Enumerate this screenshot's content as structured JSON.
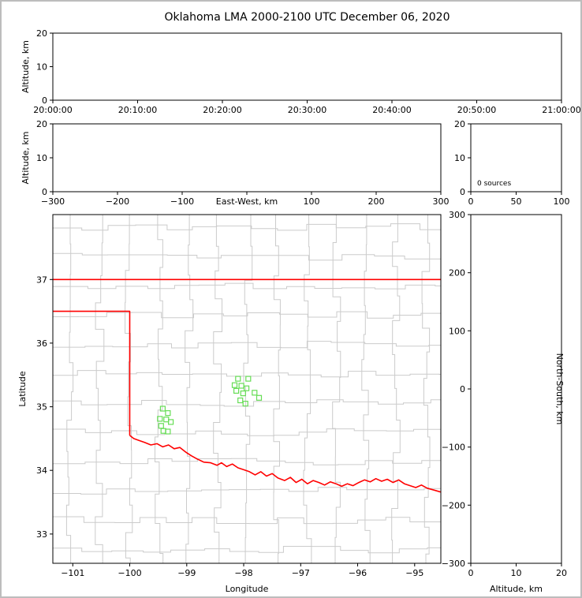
{
  "chart_data": {
    "type": "scatter",
    "title": "Oklahoma LMA 2000-2100 UTC December 06, 2020",
    "colors": {
      "county_lines": "#cbcbcb",
      "state_border": "#ff0000",
      "source_marker": "#66dd55",
      "axis": "#000000",
      "background": "#ffffff",
      "page_border": "#bdbdbd"
    },
    "panels": {
      "time_height": {
        "ylabel": "Altitude, km",
        "ylim": [
          0,
          20
        ],
        "yticks": [
          0,
          10,
          20
        ],
        "xtick_labels": [
          "20:00:00",
          "20:10:00",
          "20:20:00",
          "20:30:00",
          "20:40:00",
          "20:50:00",
          "21:00:00"
        ],
        "points": []
      },
      "ew_height": {
        "xlabel": "East-West, km",
        "ylabel": "Altitude, km",
        "xlim": [
          -300,
          300
        ],
        "xticks": [
          -300,
          -200,
          -100,
          0,
          100,
          200,
          300
        ],
        "ylim": [
          0,
          20
        ],
        "yticks": [
          0,
          10,
          20
        ],
        "points": []
      },
      "alt_histogram": {
        "annotation": "0 sources",
        "xlim": [
          0,
          100
        ],
        "xticks": [
          0,
          50,
          100
        ],
        "ylim": [
          0,
          20
        ],
        "yticks": [
          0,
          10,
          20
        ]
      },
      "map": {
        "xlabel": "Longitude",
        "ylabel": "Latitude",
        "xlim": [
          -101.35,
          -94.54
        ],
        "ylim": [
          32.54,
          38.02
        ],
        "xticks": [
          -101,
          -100,
          -99,
          -98,
          -97,
          -96,
          -95
        ],
        "yticks": [
          33,
          34,
          35,
          36,
          37
        ],
        "sources": [
          [
            -99.42,
            34.97
          ],
          [
            -99.33,
            34.9
          ],
          [
            -99.47,
            34.81
          ],
          [
            -99.36,
            34.8
          ],
          [
            -99.28,
            34.76
          ],
          [
            -99.45,
            34.7
          ],
          [
            -99.41,
            34.62
          ],
          [
            -99.33,
            34.61
          ],
          [
            -98.1,
            35.44
          ],
          [
            -97.92,
            35.44
          ],
          [
            -98.16,
            35.34
          ],
          [
            -98.04,
            35.33
          ],
          [
            -97.95,
            35.29
          ],
          [
            -98.13,
            35.25
          ],
          [
            -98.01,
            35.21
          ],
          [
            -97.81,
            35.22
          ],
          [
            -97.73,
            35.14
          ],
          [
            -98.06,
            35.1
          ],
          [
            -97.97,
            35.05
          ]
        ],
        "state_border": {
          "kansas_border": [
            [
              -101.35,
              37.0
            ],
            [
              -94.54,
              37.0
            ]
          ],
          "panhandle_border": [
            [
              -101.35,
              36.5
            ],
            [
              -100.0,
              36.5
            ],
            [
              -100.0,
              34.55
            ]
          ],
          "red_river": [
            [
              -100.0,
              34.55
            ],
            [
              -99.93,
              34.5
            ],
            [
              -99.84,
              34.47
            ],
            [
              -99.74,
              34.44
            ],
            [
              -99.63,
              34.4
            ],
            [
              -99.52,
              34.42
            ],
            [
              -99.42,
              34.37
            ],
            [
              -99.32,
              34.4
            ],
            [
              -99.22,
              34.34
            ],
            [
              -99.12,
              34.36
            ],
            [
              -99.02,
              34.29
            ],
            [
              -98.92,
              34.23
            ],
            [
              -98.82,
              34.18
            ],
            [
              -98.7,
              34.13
            ],
            [
              -98.58,
              34.12
            ],
            [
              -98.47,
              34.08
            ],
            [
              -98.39,
              34.12
            ],
            [
              -98.3,
              34.06
            ],
            [
              -98.2,
              34.1
            ],
            [
              -98.1,
              34.04
            ],
            [
              -98.0,
              34.01
            ],
            [
              -97.9,
              33.98
            ],
            [
              -97.8,
              33.93
            ],
            [
              -97.7,
              33.98
            ],
            [
              -97.6,
              33.91
            ],
            [
              -97.5,
              33.95
            ],
            [
              -97.4,
              33.88
            ],
            [
              -97.28,
              33.84
            ],
            [
              -97.18,
              33.89
            ],
            [
              -97.08,
              33.81
            ],
            [
              -96.98,
              33.86
            ],
            [
              -96.88,
              33.79
            ],
            [
              -96.78,
              33.84
            ],
            [
              -96.68,
              33.81
            ],
            [
              -96.58,
              33.77
            ],
            [
              -96.48,
              33.82
            ],
            [
              -96.38,
              33.79
            ],
            [
              -96.28,
              33.75
            ],
            [
              -96.18,
              33.79
            ],
            [
              -96.08,
              33.76
            ],
            [
              -95.98,
              33.81
            ],
            [
              -95.88,
              33.85
            ],
            [
              -95.78,
              33.82
            ],
            [
              -95.68,
              33.87
            ],
            [
              -95.58,
              33.83
            ],
            [
              -95.48,
              33.86
            ],
            [
              -95.38,
              33.81
            ],
            [
              -95.28,
              33.85
            ],
            [
              -95.18,
              33.79
            ],
            [
              -95.08,
              33.76
            ],
            [
              -94.98,
              33.73
            ],
            [
              -94.88,
              33.77
            ],
            [
              -94.78,
              33.72
            ],
            [
              -94.66,
              33.69
            ],
            [
              -94.54,
              33.66
            ]
          ]
        },
        "county_grid": {
          "lon_step": 0.52,
          "lat_step": 0.46,
          "jitter": 0.16,
          "seed": 11
        }
      },
      "ns_height": {
        "xlabel": "Altitude, km",
        "ylabel_right": "North-South, km",
        "xlim": [
          0,
          20
        ],
        "xticks": [
          0,
          10,
          20
        ],
        "ylim": [
          -300,
          300
        ],
        "yticks": [
          -300,
          -200,
          -100,
          0,
          100,
          200,
          300
        ],
        "points": []
      }
    }
  }
}
